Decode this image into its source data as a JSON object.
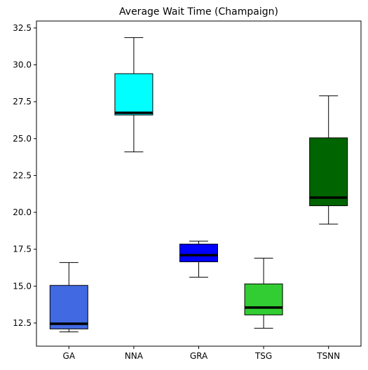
{
  "chart_data": {
    "type": "box",
    "title": "Average Wait Time (Champaign)",
    "xlabel": "",
    "ylabel": "",
    "ylim": [
      10.93,
      32.97
    ],
    "yticks": [
      "12.5",
      "15.0",
      "17.5",
      "20.0",
      "22.5",
      "25.0",
      "27.5",
      "30.0",
      "32.5"
    ],
    "grid": false,
    "series": [
      {
        "category": "GA",
        "color": "#4169E1",
        "whisker_low": 11.9,
        "q1": 12.1,
        "median": 12.45,
        "q3": 15.05,
        "whisker_high": 16.6
      },
      {
        "category": "NNA",
        "color": "#00FFFF",
        "whisker_low": 24.1,
        "q1": 26.6,
        "median": 26.75,
        "q3": 29.4,
        "whisker_high": 31.85
      },
      {
        "category": "GRA",
        "color": "#0000FF",
        "whisker_low": 15.6,
        "q1": 16.65,
        "median": 17.1,
        "q3": 17.85,
        "whisker_high": 18.05
      },
      {
        "category": "TSG",
        "color": "#32CD32",
        "whisker_low": 12.15,
        "q1": 13.05,
        "median": 13.55,
        "q3": 15.15,
        "whisker_high": 16.9
      },
      {
        "category": "TSNN",
        "color": "#006400",
        "whisker_low": 19.2,
        "q1": 20.45,
        "median": 21.0,
        "q3": 25.05,
        "whisker_high": 27.9
      }
    ]
  }
}
